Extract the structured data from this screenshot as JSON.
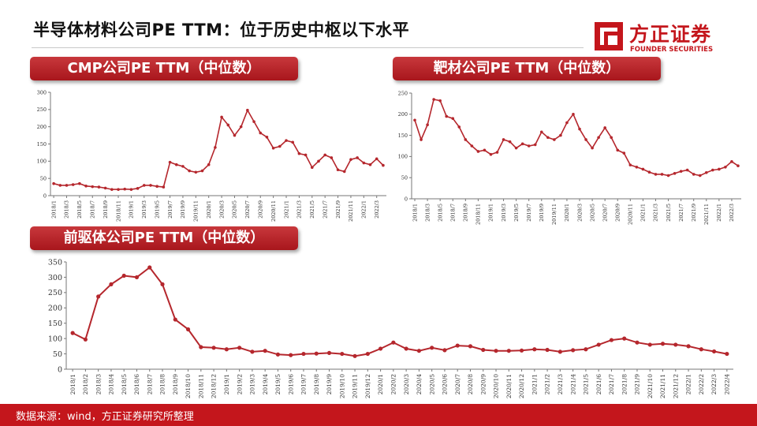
{
  "header": {
    "title": "半导体材料公司PE TTM：位于历史中枢以下水平",
    "logo_cn": "方正证券",
    "logo_en": "FOUNDER SECURITIES"
  },
  "footer": {
    "source": "数据来源：wind，方正证券研究所整理"
  },
  "colors": {
    "accent": "#c4161c",
    "series": "#b5272d",
    "footer": "#c4161c"
  },
  "chart_data": [
    {
      "id": "cmp",
      "type": "line",
      "title": "CMP公司PE TTM（中位数）",
      "ylim": [
        0,
        300
      ],
      "yticks": [
        0,
        50,
        100,
        150,
        200,
        250,
        300
      ],
      "xtick_labels": [
        "2018/1",
        "2018/3",
        "2018/5",
        "2018/7",
        "2018/9",
        "2018/11",
        "2019/1",
        "2019/3",
        "2019/5",
        "2019/7",
        "2019/9",
        "2019/11",
        "2020/1",
        "2020/3",
        "2020/5",
        "2020/7",
        "2020/9",
        "2020/11",
        "2021/1",
        "2021/3",
        "2021/5",
        "2021/7",
        "2021/9",
        "2021/11",
        "2022/1",
        "2022/3"
      ],
      "values": [
        35,
        30,
        30,
        32,
        35,
        28,
        26,
        25,
        22,
        18,
        18,
        19,
        18,
        21,
        30,
        30,
        27,
        25,
        97,
        90,
        85,
        72,
        68,
        72,
        90,
        140,
        228,
        205,
        175,
        200,
        248,
        215,
        182,
        170,
        138,
        143,
        160,
        155,
        122,
        118,
        82,
        100,
        118,
        110,
        75,
        70,
        105,
        110,
        95,
        90,
        107,
        88
      ]
    },
    {
      "id": "target",
      "type": "line",
      "title": "靶材公司PE TTM（中位数）",
      "ylim": [
        0,
        250
      ],
      "yticks": [
        0,
        50,
        100,
        150,
        200,
        250
      ],
      "xtick_labels": [
        "2018/1",
        "2018/3",
        "2018/5",
        "2018/7",
        "2018/9",
        "2018/11",
        "2019/1",
        "2019/3",
        "2019/5",
        "2019/7",
        "2019/9",
        "2019/11",
        "2020/1",
        "2020/3",
        "2020/5",
        "2020/7",
        "2020/9",
        "2020/11",
        "2021/1",
        "2021/3",
        "2021/5",
        "2021/7",
        "2021/9",
        "2021/11",
        "2022/1",
        "2022/3"
      ],
      "values": [
        186,
        140,
        175,
        235,
        232,
        195,
        190,
        170,
        140,
        125,
        112,
        115,
        105,
        110,
        140,
        135,
        120,
        130,
        125,
        128,
        158,
        145,
        140,
        150,
        180,
        200,
        165,
        140,
        120,
        145,
        168,
        145,
        115,
        108,
        80,
        75,
        70,
        63,
        58,
        58,
        55,
        60,
        65,
        68,
        58,
        55,
        62,
        68,
        70,
        75,
        88,
        78
      ]
    },
    {
      "id": "precursor",
      "type": "line",
      "title": "前驱体公司PE TTM（中位数）",
      "ylim": [
        0,
        350
      ],
      "yticks": [
        0,
        50,
        100,
        150,
        200,
        250,
        300,
        350
      ],
      "xtick_labels": [
        "2018/1",
        "2018/2",
        "2018/3",
        "2018/4",
        "2018/5",
        "2018/6",
        "2018/7",
        "2018/8",
        "2018/9",
        "2018/10",
        "2018/11",
        "2018/12",
        "2019/1",
        "2019/2",
        "2019/3",
        "2019/4",
        "2019/5",
        "2019/6",
        "2019/7",
        "2019/8",
        "2019/9",
        "2019/10",
        "2019/11",
        "2019/12",
        "2020/1",
        "2020/2",
        "2020/3",
        "2020/4",
        "2020/5",
        "2020/6",
        "2020/7",
        "2020/8",
        "2020/9",
        "2020/10",
        "2020/11",
        "2020/12",
        "2021/1",
        "2021/2",
        "2021/3",
        "2021/4",
        "2021/5",
        "2021/6",
        "2021/7",
        "2021/8",
        "2021/9",
        "2021/10",
        "2021/11",
        "2021/12",
        "2022/1",
        "2022/2",
        "2022/3",
        "2022/4"
      ],
      "values": [
        118,
        97,
        237,
        277,
        305,
        300,
        332,
        277,
        162,
        130,
        72,
        70,
        65,
        70,
        57,
        60,
        48,
        46,
        50,
        51,
        53,
        50,
        43,
        50,
        67,
        87,
        67,
        60,
        70,
        62,
        77,
        75,
        63,
        60,
        60,
        61,
        65,
        63,
        57,
        62,
        65,
        80,
        95,
        100,
        87,
        80,
        83,
        80,
        75,
        65,
        58,
        50
      ]
    }
  ]
}
